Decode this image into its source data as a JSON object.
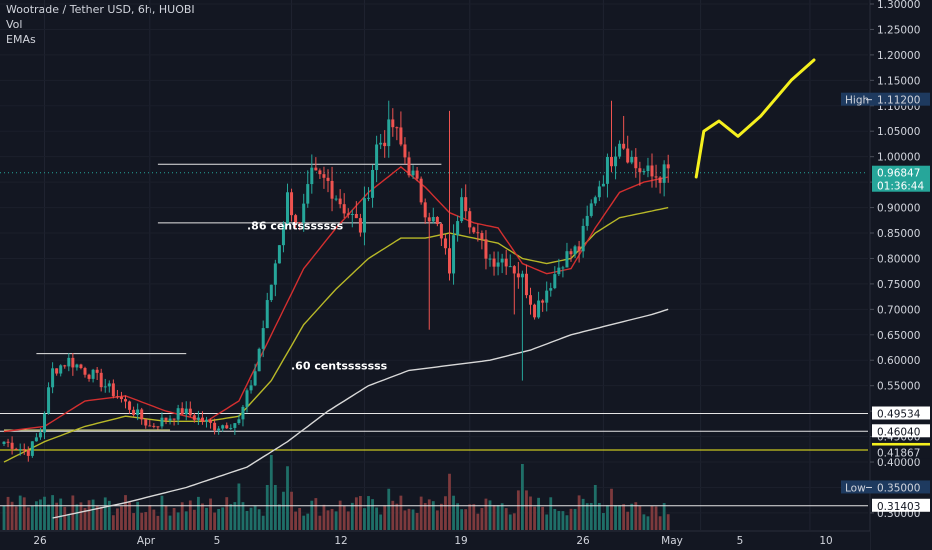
{
  "header": {
    "title": "Wootrade / Tether USD, 6h, HUOBI",
    "indicator_vol": "Vol",
    "indicator_emas": "EMAs"
  },
  "colors": {
    "background": "#131722",
    "candle_up": "#26a69a",
    "candle_down": "#ef5350",
    "vol_up": "#1f6f68",
    "vol_down": "#7d3a3d",
    "ema_fast": "#d32f2f",
    "ema_mid": "#b8b828",
    "ema_slow": "#d8d8d8",
    "annotation_yellow": "#f5f01e",
    "axis_text": "#d1d4dc"
  },
  "chart_data": {
    "type": "candlestick",
    "title": "Wootrade / Tether USD, 6h, HUOBI",
    "ylim": [
      0.29,
      1.3
    ],
    "y_ticks": [
      "1.30000",
      "1.25000",
      "1.20000",
      "1.15000",
      "1.10000",
      "1.05000",
      "1.00000",
      "0.95000",
      "0.90000",
      "0.85000",
      "0.80000",
      "0.75000",
      "0.70000",
      "0.65000",
      "0.60000",
      "0.55000",
      "0.50000",
      "0.45000",
      "0.40000",
      "0.35000",
      "0.30000"
    ],
    "x_ticks": [
      "26",
      "Apr",
      "5",
      "12",
      "19",
      "26",
      "May",
      "5",
      "10"
    ],
    "anchors": [
      {
        "i": 0,
        "p": 0.44
      },
      {
        "i": 6,
        "p": 0.42
      },
      {
        "i": 9,
        "p": 0.46
      },
      {
        "i": 12,
        "p": 0.58
      },
      {
        "i": 16,
        "p": 0.6
      },
      {
        "i": 22,
        "p": 0.57
      },
      {
        "i": 28,
        "p": 0.53
      },
      {
        "i": 36,
        "p": 0.47
      },
      {
        "i": 44,
        "p": 0.5
      },
      {
        "i": 52,
        "p": 0.47
      },
      {
        "i": 58,
        "p": 0.48
      },
      {
        "i": 62,
        "p": 0.58
      },
      {
        "i": 66,
        "p": 0.75
      },
      {
        "i": 70,
        "p": 0.92
      },
      {
        "i": 73,
        "p": 0.86
      },
      {
        "i": 76,
        "p": 0.96
      },
      {
        "i": 80,
        "p": 0.95
      },
      {
        "i": 84,
        "p": 0.9
      },
      {
        "i": 88,
        "p": 0.86
      },
      {
        "i": 92,
        "p": 1.02
      },
      {
        "i": 96,
        "p": 1.06
      },
      {
        "i": 100,
        "p": 0.98
      },
      {
        "i": 104,
        "p": 0.9
      },
      {
        "i": 107,
        "p": 0.86
      },
      {
        "i": 110,
        "p": 0.78
      },
      {
        "i": 113,
        "p": 0.94
      },
      {
        "i": 116,
        "p": 0.85
      },
      {
        "i": 120,
        "p": 0.8
      },
      {
        "i": 124,
        "p": 0.8
      },
      {
        "i": 128,
        "p": 0.76
      },
      {
        "i": 131,
        "p": 0.7
      },
      {
        "i": 134,
        "p": 0.74
      },
      {
        "i": 138,
        "p": 0.8
      },
      {
        "i": 142,
        "p": 0.82
      },
      {
        "i": 146,
        "p": 0.93
      },
      {
        "i": 150,
        "p": 1.0
      },
      {
        "i": 152,
        "p": 1.04
      },
      {
        "i": 156,
        "p": 0.98
      },
      {
        "i": 160,
        "p": 0.96
      },
      {
        "i": 164,
        "p": 0.97
      }
    ],
    "spikes_high": [
      {
        "i": 95,
        "p": 1.11
      },
      {
        "i": 110,
        "p": 1.09
      },
      {
        "i": 150,
        "p": 1.11
      },
      {
        "i": 153,
        "p": 1.08
      }
    ],
    "spikes_low": [
      {
        "i": 105,
        "p": 0.66
      },
      {
        "i": 126,
        "p": 0.69
      },
      {
        "i": 128,
        "p": 0.56
      }
    ],
    "ema_fast": [
      [
        0,
        0.46
      ],
      [
        10,
        0.47
      ],
      [
        20,
        0.52
      ],
      [
        30,
        0.53
      ],
      [
        40,
        0.5
      ],
      [
        50,
        0.48
      ],
      [
        58,
        0.52
      ],
      [
        66,
        0.65
      ],
      [
        74,
        0.78
      ],
      [
        82,
        0.86
      ],
      [
        90,
        0.93
      ],
      [
        98,
        0.98
      ],
      [
        104,
        0.94
      ],
      [
        110,
        0.89
      ],
      [
        116,
        0.87
      ],
      [
        122,
        0.86
      ],
      [
        128,
        0.79
      ],
      [
        134,
        0.77
      ],
      [
        140,
        0.78
      ],
      [
        146,
        0.86
      ],
      [
        152,
        0.93
      ],
      [
        158,
        0.95
      ],
      [
        164,
        0.96
      ]
    ],
    "ema_mid": [
      [
        0,
        0.4
      ],
      [
        10,
        0.44
      ],
      [
        20,
        0.47
      ],
      [
        30,
        0.49
      ],
      [
        40,
        0.48
      ],
      [
        50,
        0.48
      ],
      [
        58,
        0.49
      ],
      [
        66,
        0.56
      ],
      [
        74,
        0.67
      ],
      [
        82,
        0.74
      ],
      [
        90,
        0.8
      ],
      [
        98,
        0.84
      ],
      [
        104,
        0.84
      ],
      [
        110,
        0.85
      ],
      [
        116,
        0.84
      ],
      [
        122,
        0.83
      ],
      [
        128,
        0.8
      ],
      [
        134,
        0.79
      ],
      [
        140,
        0.8
      ],
      [
        146,
        0.85
      ],
      [
        152,
        0.88
      ],
      [
        158,
        0.89
      ],
      [
        164,
        0.9
      ]
    ],
    "ema_slow": [
      [
        12,
        0.29
      ],
      [
        30,
        0.32
      ],
      [
        45,
        0.35
      ],
      [
        60,
        0.39
      ],
      [
        70,
        0.44
      ],
      [
        80,
        0.5
      ],
      [
        90,
        0.55
      ],
      [
        100,
        0.58
      ],
      [
        110,
        0.59
      ],
      [
        120,
        0.6
      ],
      [
        130,
        0.62
      ],
      [
        140,
        0.65
      ],
      [
        150,
        0.67
      ],
      [
        160,
        0.69
      ],
      [
        164,
        0.7
      ]
    ],
    "volume": {
      "base": 0.52,
      "peaks": [
        {
          "i": 9,
          "v": 0.35
        },
        {
          "i": 58,
          "v": 0.62
        },
        {
          "i": 66,
          "v": 1.0
        },
        {
          "i": 70,
          "v": 0.85
        },
        {
          "i": 95,
          "v": 0.55
        },
        {
          "i": 110,
          "v": 0.75
        },
        {
          "i": 128,
          "v": 0.88
        },
        {
          "i": 146,
          "v": 0.6
        },
        {
          "i": 150,
          "v": 0.55
        }
      ]
    },
    "levels": [
      {
        "price": 0.96847,
        "label": "0.96847",
        "sub": "01:36:44",
        "style": "dotted",
        "label_bg": "#26a69a",
        "label_color": "#ffffff"
      },
      {
        "price": 1.112,
        "label": "1.11200",
        "prefix": "High",
        "style": "none",
        "label_bg": "#1e3a5f",
        "label_color": "#d1d4dc"
      },
      {
        "price": 0.49534,
        "label": "0.49534",
        "style": "solid-white",
        "label_bg": "#ffffff",
        "label_color": "#131722"
      },
      {
        "price": 0.4604,
        "label": "0.46040",
        "style": "solid-white",
        "label_bg": "#ffffff",
        "label_color": "#131722"
      },
      {
        "price": 0.42374,
        "label": "0.42374",
        "style": "solid-yellow",
        "label_bg": "#f5f01e",
        "label_color": "#131722"
      },
      {
        "price": 0.41867,
        "label": "0.41867",
        "style": "none",
        "label_bg": "#131722",
        "label_color": "#d1d4dc"
      },
      {
        "price": 0.35,
        "label": "0.35000",
        "prefix": "Low",
        "style": "none",
        "label_bg": "#1e3a5f",
        "label_color": "#d1d4dc"
      },
      {
        "price": 0.31403,
        "label": "0.31403",
        "style": "solid-white",
        "label_bg": "#ffffff",
        "label_color": "#131722"
      }
    ],
    "drawn_levels": [
      {
        "price": 0.985,
        "from": 38,
        "to": 108
      },
      {
        "price": 0.87,
        "from": 38,
        "to": 108
      },
      {
        "price": 0.613,
        "from": 8,
        "to": 45
      },
      {
        "price": 0.463,
        "from": 0,
        "to": 41
      }
    ],
    "annotations": [
      {
        "text": ".86 centsssssss",
        "price": 0.865
      },
      {
        "text": ".60 centsssssss",
        "price": 0.59
      }
    ],
    "projection": [
      [
        0,
        0.96
      ],
      [
        4,
        1.05
      ],
      [
        12,
        1.07
      ],
      [
        22,
        1.04
      ],
      [
        34,
        1.08
      ],
      [
        50,
        1.15
      ],
      [
        62,
        1.19
      ]
    ]
  }
}
